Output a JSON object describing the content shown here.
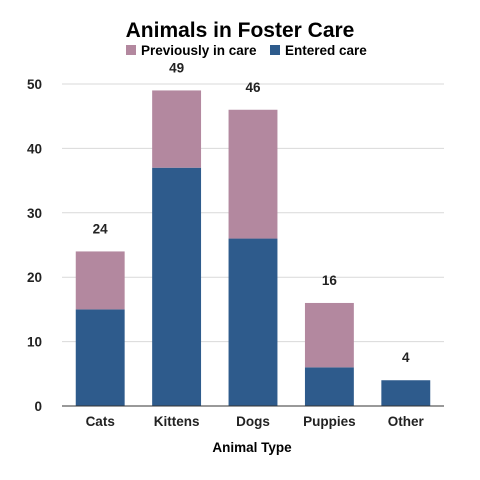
{
  "chart_data": {
    "type": "bar",
    "stacked": true,
    "title": "Animals in Foster Care",
    "xlabel": "Animal Type",
    "ylabel": "",
    "categories": [
      "Cats",
      "Kittens",
      "Dogs",
      "Puppies",
      "Other"
    ],
    "series": [
      {
        "name": "Entered care",
        "color": "#2e5b8c",
        "values": [
          15,
          37,
          26,
          6,
          4
        ]
      },
      {
        "name": "Previously in care",
        "color": "#b3889f",
        "values": [
          9,
          12,
          20,
          10,
          0
        ]
      }
    ],
    "totals": [
      "24",
      "49",
      "46",
      "16",
      "4"
    ],
    "ylim": [
      0,
      50
    ],
    "yticks": [
      "0",
      "10",
      "20",
      "30",
      "40",
      "50"
    ],
    "grid": true,
    "legend_position": "top",
    "legend_order": [
      "Previously in care",
      "Entered care"
    ]
  }
}
